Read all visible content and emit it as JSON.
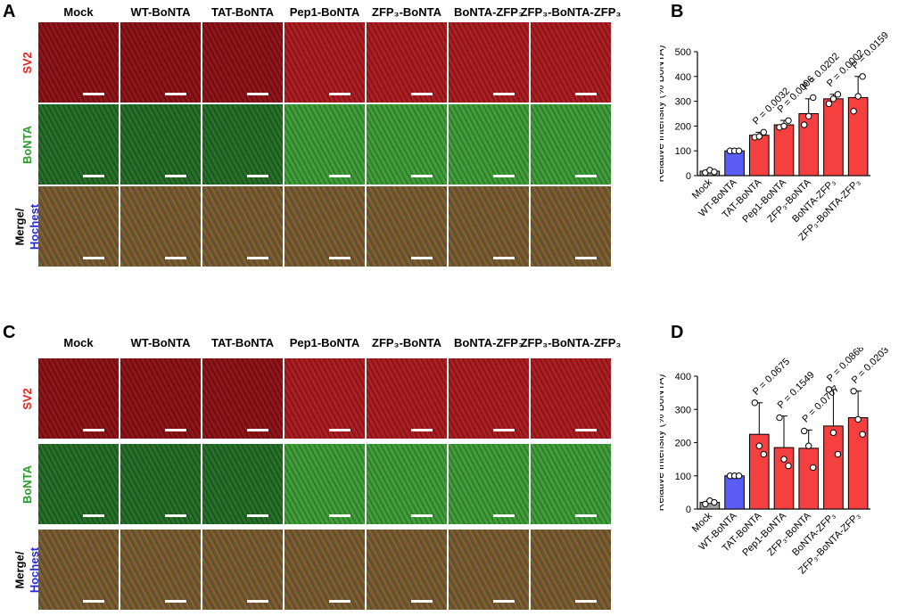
{
  "panels": {
    "A": {
      "letter": "A"
    },
    "B": {
      "letter": "B"
    },
    "C": {
      "letter": "C"
    },
    "D": {
      "letter": "D"
    }
  },
  "columns": [
    "Mock",
    "WT-BoNTA",
    "TAT-BoNTA",
    "Pep1-BoNTA",
    "ZFP₃-BoNTA",
    "BoNTA-ZFP₃",
    "ZFP₃-BoNTA-ZFP₃"
  ],
  "rows": {
    "sv2": "SV2",
    "bonta": "BoNTA",
    "merge": "Merge/",
    "hochest": "Hochest"
  },
  "colors": {
    "gray_bar": "#9e9e9e",
    "blue_bar": "#5b5bf5",
    "red_bar": "#f5403f",
    "sv2_label": "#e8231f",
    "bonta_label": "#2e9a2e",
    "hochest_label": "#2a2ad0"
  },
  "chart_data": [
    {
      "type": "bar",
      "panel": "B",
      "categories": [
        "Mock",
        "WT-BoNTA",
        "TAT-BoNTA",
        "Pep1-BoNTA",
        "ZFP₃-BoNTA",
        "BoNTA-ZFP₃",
        "ZFP₃-BoNTA-ZFP₃"
      ],
      "values": [
        18,
        100,
        163,
        205,
        250,
        310,
        315
      ],
      "errors": [
        5,
        0,
        12,
        18,
        60,
        18,
        85
      ],
      "points": [
        [
          12,
          22,
          15
        ],
        [
          100,
          100,
          100
        ],
        [
          155,
          158,
          175
        ],
        [
          195,
          200,
          222
        ],
        [
          205,
          240,
          315
        ],
        [
          290,
          310,
          328
        ],
        [
          260,
          320,
          400
        ]
      ],
      "p_values": [
        "",
        "",
        "P = 0.0032",
        "P = 0.0006",
        "P = 0.0202",
        "P = 0.0002",
        "P = 0.0159"
      ],
      "ylabel": "Relative intensity (% BoNTA)",
      "ylim": [
        0,
        500
      ],
      "yticks": [
        "0",
        "100",
        "200",
        "300",
        "400",
        "500"
      ]
    },
    {
      "type": "bar",
      "panel": "D",
      "categories": [
        "Mock",
        "WT-BoNTA",
        "TAT-BoNTA",
        "Pep1-BoNTA",
        "ZFP₃-BoNTA",
        "BoNTA-ZFP₃",
        "ZFP₃-BoNTA-ZFP₃"
      ],
      "values": [
        20,
        100,
        225,
        185,
        183,
        250,
        275
      ],
      "errors": [
        5,
        0,
        95,
        95,
        55,
        110,
        80
      ],
      "points": [
        [
          15,
          25,
          20
        ],
        [
          100,
          100,
          100
        ],
        [
          320,
          190,
          165
        ],
        [
          275,
          150,
          130
        ],
        [
          235,
          190,
          125
        ],
        [
          360,
          230,
          165
        ],
        [
          355,
          270,
          225
        ]
      ],
      "p_values": [
        "",
        "",
        "P = 0.0675",
        "P = 0.1549",
        "P = 0.0707",
        "P = 0.0868",
        "P = 0.0203"
      ],
      "ylabel": "Relative intensity (% BoNTA)",
      "ylim": [
        0,
        400
      ],
      "yticks": [
        "0",
        "100",
        "200",
        "300",
        "400"
      ]
    }
  ]
}
